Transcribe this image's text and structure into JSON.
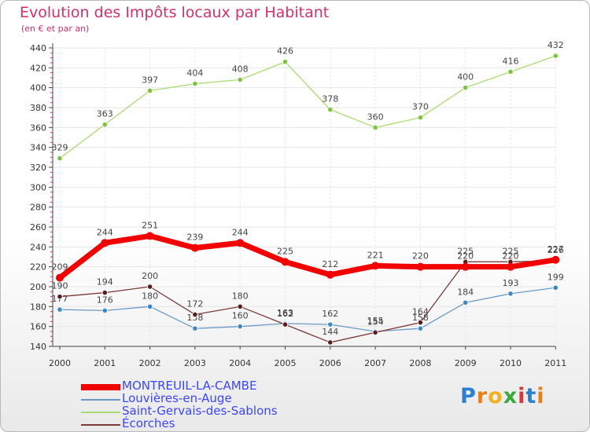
{
  "title": "Evolution des Impôts locaux par Habitant",
  "subtitle": "(en € et par an)",
  "brand": "Proxiti",
  "chart_data": {
    "type": "line",
    "title": "Evolution des Impôts locaux par Habitant",
    "subtitle": "(en € et par an)",
    "xlabel": "",
    "ylabel": "",
    "x": [
      "2000",
      "2001",
      "2002",
      "2003",
      "2004",
      "2005",
      "2006",
      "2007",
      "2008",
      "2009",
      "2010",
      "2011"
    ],
    "ylim": [
      140,
      440
    ],
    "yticks": [
      140,
      160,
      180,
      200,
      220,
      240,
      260,
      280,
      300,
      320,
      340,
      360,
      380,
      400,
      420,
      440
    ],
    "grid": "horizontal",
    "series": [
      {
        "name": "Louvières-en-Auge",
        "color": "#6b9ac8",
        "marker": "#3d86c8",
        "width": 1.3,
        "values": [
          177,
          176,
          180,
          158,
          160,
          163,
          162,
          155,
          158,
          184,
          193,
          199
        ]
      },
      {
        "name": "Saint-Gervais-des-Sablons",
        "color": "#a8dc70",
        "marker": "#7cc43c",
        "width": 1.3,
        "values": [
          329,
          363,
          397,
          404,
          408,
          426,
          378,
          360,
          370,
          400,
          416,
          432
        ]
      },
      {
        "name": "Écorches",
        "color": "#7a3a38",
        "marker": "#5a1e1c",
        "width": 1.3,
        "values": [
          190,
          194,
          200,
          172,
          180,
          162,
          144,
          154,
          164,
          225,
          225,
          226
        ]
      },
      {
        "name": "MONTREUIL-LA-CAMBE",
        "color": "#f20000",
        "marker": "#f20000",
        "width": 7,
        "values": [
          209,
          244,
          251,
          239,
          244,
          225,
          212,
          221,
          220,
          220,
          220,
          227
        ]
      }
    ],
    "legend": [
      "MONTREUIL-LA-CAMBE",
      "Louvières-en-Auge",
      "Saint-Gervais-des-Sablons",
      "Écorches"
    ],
    "legend_placement": "bottom-left"
  }
}
